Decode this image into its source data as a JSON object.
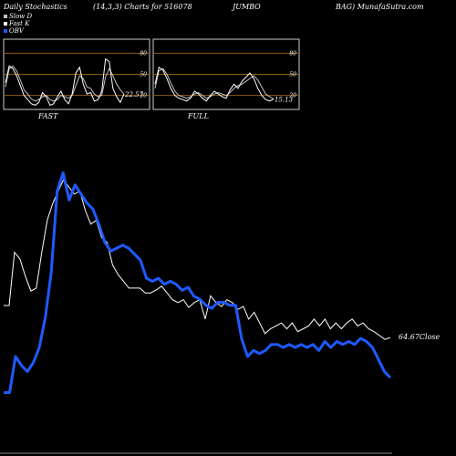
{
  "header": {
    "left": "Daily Stochastics",
    "center": "(14,3,3) Charts for 516078",
    "symbol": "JUMBO",
    "right": "BAG) MunafaSutra.com"
  },
  "legend": [
    {
      "label": "Slow D",
      "color": "#c0c0c0"
    },
    {
      "label": "Fast K",
      "color": "#ffffff"
    },
    {
      "label": "OBV",
      "color": "#1e5aff"
    }
  ],
  "colors": {
    "obv": "#1e5aff",
    "price": "#ffffff",
    "level_lines": "#8b5a14",
    "panel_border": "#cccccc"
  },
  "chart_data": [
    {
      "type": "line",
      "title": "FAST",
      "ylim": [
        0,
        100
      ],
      "yticks": [
        "80",
        "50",
        "20"
      ],
      "last_value_label": "22.57",
      "series": [
        {
          "name": "Slow D",
          "values": [
            32,
            58,
            62,
            55,
            42,
            28,
            22,
            15,
            12,
            14,
            18,
            20,
            14,
            12,
            14,
            20,
            18,
            16,
            20,
            34,
            48,
            44,
            32,
            30,
            22,
            18,
            20,
            46,
            58,
            48,
            36,
            28,
            22
          ]
        },
        {
          "name": "Fast K",
          "values": [
            38,
            62,
            58,
            48,
            34,
            20,
            14,
            8,
            6,
            10,
            24,
            18,
            6,
            8,
            18,
            26,
            14,
            8,
            22,
            52,
            60,
            36,
            22,
            24,
            12,
            14,
            26,
            72,
            68,
            30,
            18,
            10,
            22
          ]
        }
      ]
    },
    {
      "type": "line",
      "title": "FULL",
      "ylim": [
        0,
        100
      ],
      "yticks": [
        "80",
        "50",
        "20"
      ],
      "last_value_label": "15.13",
      "series": [
        {
          "name": "Slow D",
          "values": [
            30,
            55,
            58,
            50,
            38,
            26,
            20,
            18,
            16,
            18,
            22,
            24,
            20,
            16,
            18,
            22,
            24,
            22,
            20,
            24,
            30,
            34,
            36,
            40,
            44,
            48,
            42,
            32,
            22,
            18,
            15
          ]
        },
        {
          "name": "Fast K",
          "values": [
            36,
            60,
            56,
            44,
            30,
            20,
            16,
            14,
            12,
            16,
            26,
            22,
            16,
            12,
            20,
            26,
            22,
            18,
            16,
            28,
            36,
            30,
            40,
            46,
            52,
            44,
            30,
            20,
            14,
            12,
            15
          ]
        }
      ]
    },
    {
      "type": "line",
      "last_value_label": "64.67Close",
      "series": [
        {
          "name": "Close",
          "values": [
            68.0,
            68.0,
            73.5,
            72.8,
            71.0,
            69.5,
            69.8,
            73.5,
            76.8,
            78.5,
            79.8,
            81.0,
            80.2,
            79.5,
            79.8,
            77.8,
            76.4,
            76.8,
            75.0,
            74.5,
            72.2,
            71.2,
            70.5,
            69.8,
            69.8,
            69.8,
            69.3,
            69.3,
            69.6,
            70.0,
            69.3,
            68.6,
            68.3,
            68.6,
            67.8,
            68.3,
            68.6,
            66.6,
            69.0,
            68.3,
            67.9,
            68.6,
            68.3,
            67.6,
            67.9,
            66.6,
            67.3,
            66.2,
            65.1,
            65.6,
            65.9,
            66.2,
            65.6,
            66.2,
            65.3,
            65.6,
            65.9,
            66.6,
            65.9,
            66.6,
            65.6,
            66.2,
            65.6,
            66.2,
            66.6,
            65.9,
            66.2,
            65.6,
            65.3,
            64.9,
            64.5,
            64.7
          ]
        },
        {
          "name": "OBV",
          "values": [
            15,
            15,
            27,
            24,
            22,
            25,
            30,
            40,
            55,
            82,
            88,
            79,
            84,
            81,
            78,
            76,
            71,
            65,
            62,
            63,
            64,
            63,
            61,
            59,
            53,
            52,
            53,
            51,
            52,
            51,
            49,
            50,
            47,
            46,
            44,
            43,
            45,
            45,
            44,
            44,
            33,
            27,
            29,
            28,
            29,
            31,
            31,
            30,
            31,
            30,
            31,
            30,
            31,
            29,
            32,
            30,
            32,
            31,
            32,
            31,
            33,
            32,
            30,
            26,
            22,
            20
          ]
        }
      ]
    }
  ]
}
